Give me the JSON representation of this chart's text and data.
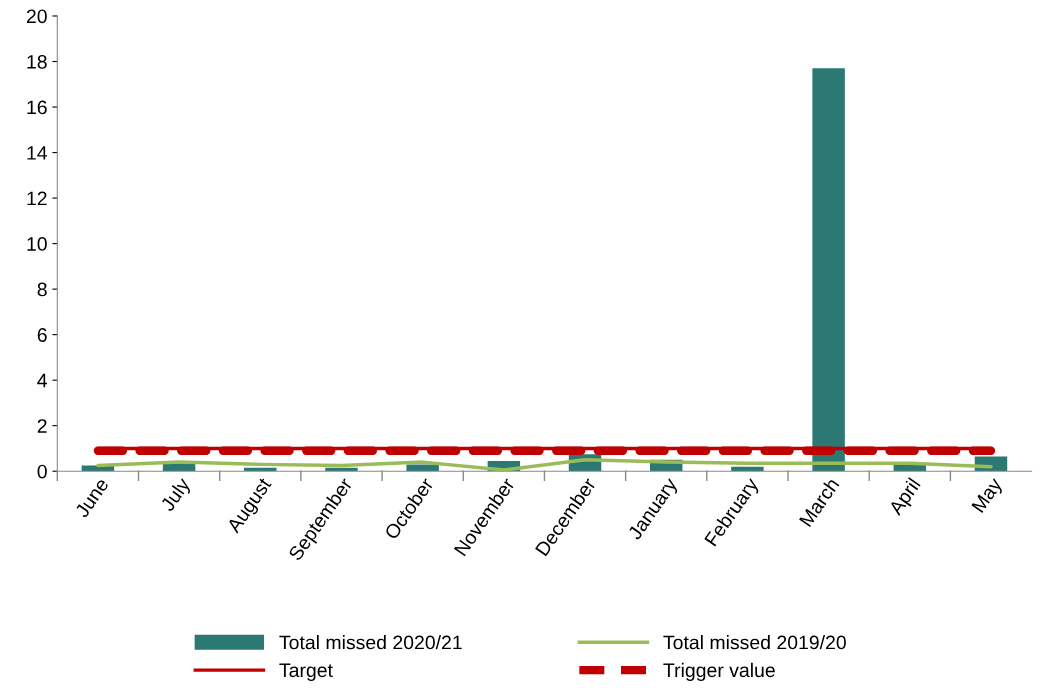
{
  "chart_data": {
    "type": "bar",
    "categories": [
      "June",
      "July",
      "August",
      "September",
      "October",
      "November",
      "December",
      "January",
      "February",
      "March",
      "April",
      "May"
    ],
    "series": [
      {
        "name": "Total missed 2020/21",
        "color": "#2c7873",
        "values": [
          0.25,
          0.35,
          0.15,
          0.15,
          0.3,
          0.45,
          0.75,
          0.5,
          0.2,
          17.7,
          0.3,
          0.65
        ]
      },
      {
        "name": "Total missed 2019/20",
        "type": "line",
        "color": "#9bbb59",
        "values": [
          0.25,
          0.4,
          0.3,
          0.25,
          0.4,
          0.05,
          0.5,
          0.4,
          0.35,
          0.35,
          0.35,
          0.2
        ]
      },
      {
        "name": "Target",
        "type": "line",
        "color": "#c00000",
        "line_style": "solid",
        "values": [
          1,
          1,
          1,
          1,
          1,
          1,
          1,
          1,
          1,
          1,
          1,
          1
        ]
      },
      {
        "name": "Trigger value",
        "type": "line",
        "color": "#c00000",
        "line_style": "dashed",
        "values": [
          0.9,
          0.9,
          0.9,
          0.9,
          0.9,
          0.9,
          0.9,
          0.9,
          0.9,
          0.9,
          0.9,
          0.9
        ]
      }
    ],
    "ylim": [
      0,
      20
    ],
    "yticks": [
      0,
      2,
      4,
      6,
      8,
      10,
      12,
      14,
      16,
      18,
      20
    ],
    "grid": false,
    "legend": "bottom",
    "marker": "none"
  }
}
